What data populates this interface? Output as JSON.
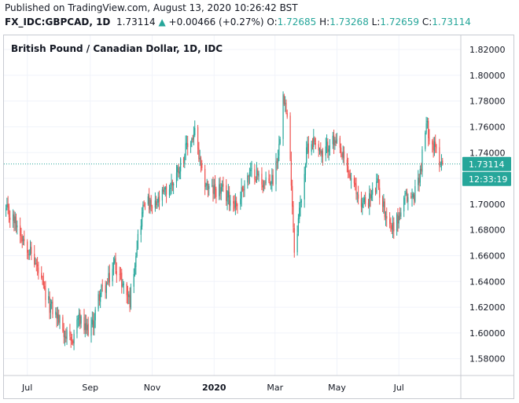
{
  "header": {
    "published": "Published on TradingView.com, August 13, 2020 10:26:42 BST",
    "symbol": "FX_IDC:GBPCAD, 1D",
    "last": "1.73114",
    "change": "+0.00466 (+0.27%)",
    "open_label": "O:",
    "open": "1.72685",
    "high_label": "H:",
    "high": "1.73268",
    "low_label": "L:",
    "low": "1.72659",
    "close_label": "C:",
    "close": "1.73114"
  },
  "price_badge": "1.73114",
  "countdown_badge": "12:33:19",
  "colors": {
    "up": "#26a69a",
    "down": "#ef5350",
    "grid": "#f0f3fa",
    "price_line": "#26a69a",
    "badge": "#26a69a"
  },
  "chart_data": {
    "type": "candlestick",
    "title": "British Pound / Canadian Dollar, 1D, IDC",
    "x_tick_labels": [
      "Jul",
      "Sep",
      "Nov",
      "2020",
      "Mar",
      "May",
      "Jul"
    ],
    "x_tick_dates": [
      "2019-07-01",
      "2019-09-01",
      "2019-11-01",
      "2020-01-01",
      "2020-03-01",
      "2020-05-01",
      "2020-07-01"
    ],
    "y_ticks": [
      1.58,
      1.6,
      1.62,
      1.64,
      1.66,
      1.68,
      1.7,
      1.72,
      1.74,
      1.76,
      1.78,
      1.8,
      1.82
    ],
    "y_tick_labels": [
      "1.58000",
      "1.60000",
      "1.62000",
      "1.64000",
      "1.66000",
      "1.68000",
      "1.70000",
      "1.72000",
      "1.74000",
      "1.76000",
      "1.78000",
      "1.80000",
      "1.82000"
    ],
    "ylim": [
      1.567,
      1.831
    ],
    "xlim": [
      "2019-06-08",
      "2020-08-31"
    ],
    "last_price": 1.73114,
    "close_path": [
      [
        "2019-06-10",
        1.695
      ],
      [
        "2019-06-20",
        1.685
      ],
      [
        "2019-07-01",
        1.668
      ],
      [
        "2019-07-10",
        1.652
      ],
      [
        "2019-07-20",
        1.625
      ],
      [
        "2019-07-31",
        1.612
      ],
      [
        "2019-08-08",
        1.598
      ],
      [
        "2019-08-13",
        1.59
      ],
      [
        "2019-08-20",
        1.612
      ],
      [
        "2019-08-27",
        1.602
      ],
      [
        "2019-09-03",
        1.605
      ],
      [
        "2019-09-10",
        1.63
      ],
      [
        "2019-09-18",
        1.638
      ],
      [
        "2019-09-25",
        1.655
      ],
      [
        "2019-10-02",
        1.64
      ],
      [
        "2019-10-10",
        1.625
      ],
      [
        "2019-10-17",
        1.67
      ],
      [
        "2019-10-25",
        1.705
      ],
      [
        "2019-11-01",
        1.695
      ],
      [
        "2019-11-10",
        1.705
      ],
      [
        "2019-11-20",
        1.715
      ],
      [
        "2019-11-28",
        1.73
      ],
      [
        "2019-12-06",
        1.745
      ],
      [
        "2019-12-13",
        1.755
      ],
      [
        "2019-12-20",
        1.722
      ],
      [
        "2019-12-28",
        1.71
      ],
      [
        "2020-01-06",
        1.712
      ],
      [
        "2020-01-15",
        1.705
      ],
      [
        "2020-01-24",
        1.7
      ],
      [
        "2020-02-01",
        1.72
      ],
      [
        "2020-02-10",
        1.725
      ],
      [
        "2020-02-20",
        1.715
      ],
      [
        "2020-02-28",
        1.72
      ],
      [
        "2020-03-05",
        1.745
      ],
      [
        "2020-03-09",
        1.79
      ],
      [
        "2020-03-13",
        1.765
      ],
      [
        "2020-03-17",
        1.72
      ],
      [
        "2020-03-20",
        1.665
      ],
      [
        "2020-03-26",
        1.7
      ],
      [
        "2020-04-02",
        1.745
      ],
      [
        "2020-04-10",
        1.75
      ],
      [
        "2020-04-17",
        1.735
      ],
      [
        "2020-04-24",
        1.75
      ],
      [
        "2020-05-01",
        1.745
      ],
      [
        "2020-05-10",
        1.73
      ],
      [
        "2020-05-18",
        1.712
      ],
      [
        "2020-05-26",
        1.7
      ],
      [
        "2020-06-03",
        1.705
      ],
      [
        "2020-06-10",
        1.715
      ],
      [
        "2020-06-17",
        1.695
      ],
      [
        "2020-06-24",
        1.682
      ],
      [
        "2020-07-01",
        1.69
      ],
      [
        "2020-07-08",
        1.705
      ],
      [
        "2020-07-15",
        1.705
      ],
      [
        "2020-07-22",
        1.725
      ],
      [
        "2020-07-28",
        1.762
      ],
      [
        "2020-08-04",
        1.745
      ],
      [
        "2020-08-13",
        1.731
      ]
    ]
  }
}
